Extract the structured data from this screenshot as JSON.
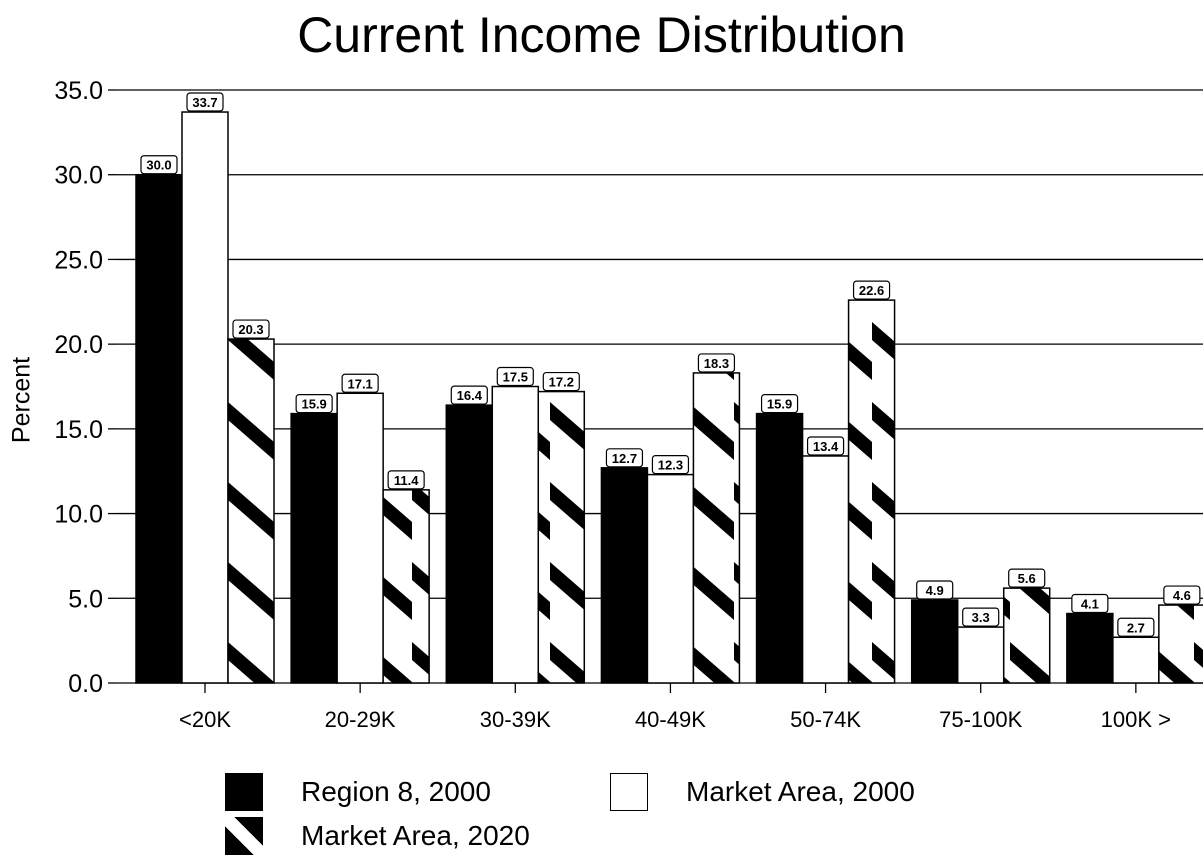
{
  "chart_data": {
    "type": "bar",
    "title": "Current Income Distribution",
    "ylabel": "Percent",
    "xlabel": "",
    "ylim": [
      0,
      35
    ],
    "yticks": [
      "0.0",
      "5.0",
      "10.0",
      "15.0",
      "20.0",
      "25.0",
      "30.0",
      "35.0"
    ],
    "grid": true,
    "legend_position": "bottom",
    "categories": [
      "<20K",
      "20-29K",
      "30-39K",
      "40-49K",
      "50-74K",
      "75-100K",
      "100K >"
    ],
    "series": [
      {
        "name": "Region 8, 2000",
        "fill": "solid-black",
        "values": [
          30.0,
          15.9,
          16.4,
          12.7,
          15.9,
          4.9,
          4.1
        ],
        "labels": [
          "30.0",
          "15.9",
          "16.4",
          "12.7",
          "15.9",
          "4.9",
          "4.1"
        ]
      },
      {
        "name": "Market Area, 2000",
        "fill": "white",
        "values": [
          33.7,
          17.1,
          17.5,
          12.3,
          13.4,
          3.3,
          2.7
        ],
        "labels": [
          "33.7",
          "17.1",
          "17.5",
          "12.3",
          "13.4",
          "3.3",
          "2.7"
        ]
      },
      {
        "name": "Market Area, 2020",
        "fill": "diagonal-stripes",
        "values": [
          20.3,
          11.4,
          17.2,
          18.3,
          22.6,
          5.6,
          4.6
        ],
        "labels": [
          "20.3",
          "11.4",
          "17.2",
          "18.3",
          "22.6",
          "5.6",
          "4.6"
        ]
      }
    ]
  }
}
